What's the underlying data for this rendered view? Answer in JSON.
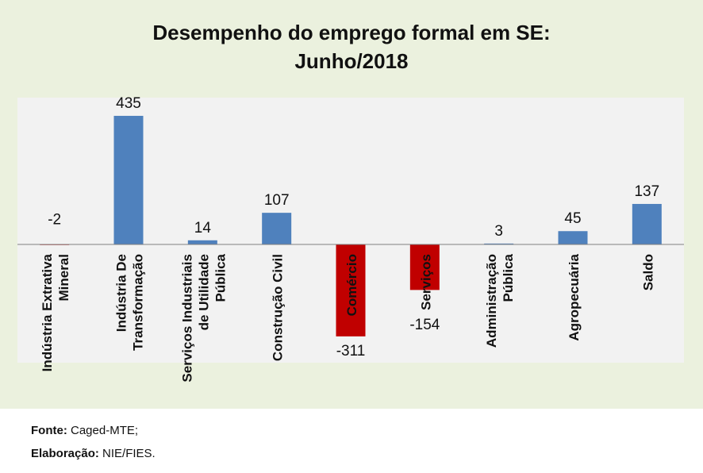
{
  "chart_data": {
    "type": "bar",
    "title": [
      "Desempenho do emprego formal em SE:",
      "Junho/2018"
    ],
    "categories": [
      [
        "Indústria Extrativa",
        "Mineral"
      ],
      [
        "Indústria De",
        "Transformação"
      ],
      [
        "Serviços Industriais",
        "de Utilidade",
        "Pública"
      ],
      [
        "Construção Civil"
      ],
      [
        "Comércio"
      ],
      [
        "Serviços"
      ],
      [
        "Administração",
        "Pública"
      ],
      [
        "Agropecuária"
      ],
      [
        "Saldo"
      ]
    ],
    "values": [
      -2,
      435,
      14,
      107,
      -311,
      -154,
      3,
      45,
      137
    ],
    "xlabel": "",
    "ylabel": "",
    "ylim": [
      -400,
      500
    ],
    "grid": false,
    "legend": "none",
    "colors": {
      "positive": "#4f81bd",
      "negative": "#c00000"
    }
  },
  "footer": {
    "source_label": "Fonte:",
    "source_value": "Caged-MTE;",
    "author_label": "Elaboração:",
    "author_value": "NIE/FIES."
  }
}
